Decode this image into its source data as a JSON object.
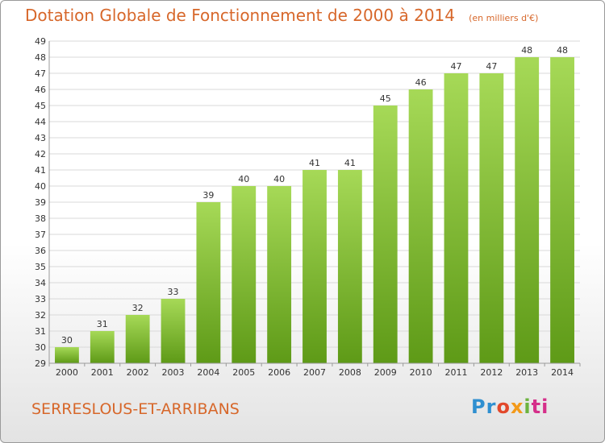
{
  "header": {
    "title": "Dotation Globale de Fonctionnement de 2000 à 2014",
    "subtitle": "(en milliers d'€)"
  },
  "footer": {
    "commune": "SERRESLOUS-ET-ARRIBANS",
    "logo": [
      "Pr",
      "o",
      "x",
      "i",
      "ti"
    ]
  },
  "colors": {
    "accent": "#d7672a",
    "bar_light": "#9ed14f",
    "bar_dark": "#63a01c",
    "grid": "#d9d9d9"
  },
  "chart_data": {
    "type": "bar",
    "title": "Dotation Globale de Fonctionnement de 2000 à 2014",
    "subtitle": "(en milliers d'€)",
    "xlabel": "",
    "ylabel": "",
    "categories": [
      "2000",
      "2001",
      "2002",
      "2003",
      "2004",
      "2005",
      "2006",
      "2007",
      "2008",
      "2009",
      "2010",
      "2011",
      "2012",
      "2013",
      "2014"
    ],
    "values": [
      30,
      31,
      32,
      33,
      39,
      40,
      40,
      41,
      41,
      45,
      46,
      47,
      47,
      48,
      48
    ],
    "ylim": [
      29,
      49
    ],
    "yticks": [
      29,
      30,
      31,
      32,
      33,
      34,
      35,
      36,
      37,
      38,
      39,
      40,
      41,
      42,
      43,
      44,
      45,
      46,
      47,
      48,
      49
    ],
    "grid": true,
    "legend": "none"
  }
}
